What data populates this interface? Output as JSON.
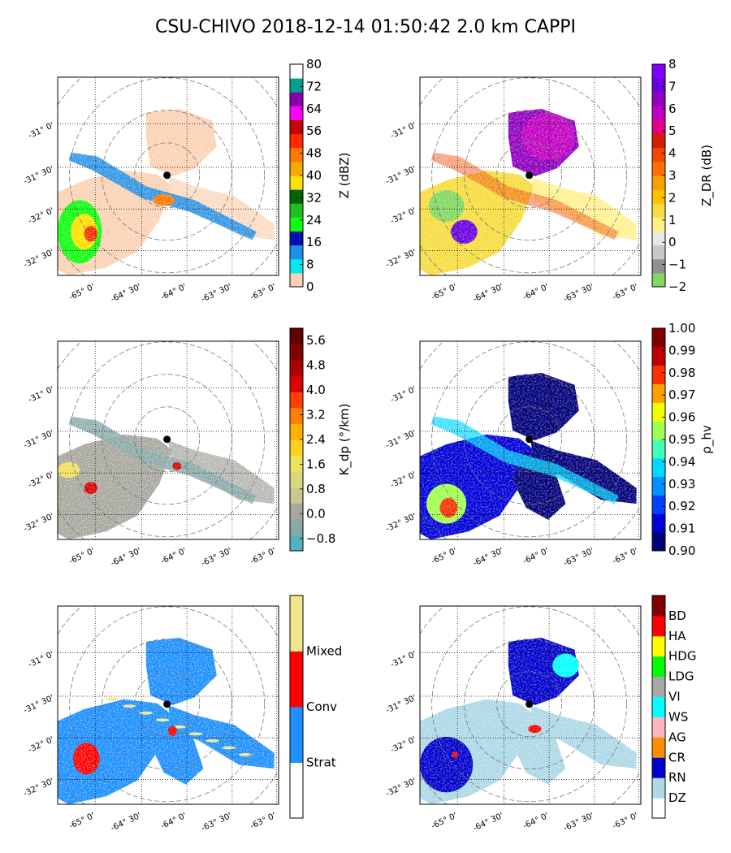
{
  "title": "CSU-CHIVO 2018-12-14 01:50:42  2.0 km CAPPI",
  "lon_ticks": [
    "-65° 0'",
    "-64° 30'",
    "-64° 0'",
    "-63° 30'",
    "-63° 0'"
  ],
  "lat_ticks": [
    "-31° 0'",
    "-31° 30'",
    "-32° 0'",
    "-32° 30'"
  ],
  "chart_data": [
    {
      "type": "heatmap",
      "field": "reflectivity",
      "colorbar_label": "Z (dBZ)",
      "colorbar_ticks": [
        "0",
        "8",
        "16",
        "24",
        "32",
        "40",
        "48",
        "56",
        "64",
        "72",
        "80"
      ],
      "colorbar_range": [
        0,
        80
      ],
      "colors": [
        "#fbd2b4",
        "#00e8f0",
        "#1f8fe8",
        "#0010b0",
        "#10ff10",
        "#20c020",
        "#006400",
        "#ffe000",
        "#f4a800",
        "#ff7a00",
        "#ff2a00",
        "#c80000",
        "#ff00ff",
        "#8a00a8",
        "#00a090",
        "#ffffff"
      ],
      "xlim": [
        "-65.3",
        "-62.95"
      ],
      "ylim": [
        "-32.8",
        "-30.55"
      ],
      "grid": true
    },
    {
      "type": "heatmap",
      "field": "differential_reflectivity",
      "colorbar_label": "Z_DR (dB)",
      "colorbar_ticks": [
        "−2",
        "−1",
        "0",
        "1",
        "2",
        "3",
        "4",
        "5",
        "6",
        "7",
        "8"
      ],
      "colorbar_range": [
        -2,
        8
      ],
      "colors": [
        "#80d860",
        "#909090",
        "#c8c8c8",
        "#e8e8e8",
        "#fff080",
        "#f6dc40",
        "#ffc000",
        "#f8a000",
        "#ff7000",
        "#f04800",
        "#d02000",
        "#e00080",
        "#c000c0",
        "#9000c0",
        "#6a00e0",
        "#8000ff"
      ],
      "xlim": [
        "-65.3",
        "-62.95"
      ],
      "ylim": [
        "-32.8",
        "-30.55"
      ],
      "grid": true
    },
    {
      "type": "heatmap",
      "field": "specific_differential_phase",
      "colorbar_label": "K_dp (°/km)",
      "colorbar_ticks": [
        "−0.8",
        "0.0",
        "0.8",
        "1.6",
        "2.4",
        "3.2",
        "4.0",
        "4.8",
        "5.6"
      ],
      "colorbar_range": [
        -1.2,
        6.0
      ],
      "colors": [
        "#56b0c0",
        "#8aa8a8",
        "#a8a8a0",
        "#c8c890",
        "#d8d880",
        "#f0e060",
        "#ffd020",
        "#ffb000",
        "#ff8000",
        "#ff4000",
        "#e00000",
        "#b00000",
        "#800000",
        "#600000"
      ],
      "xlim": [
        "-65.3",
        "-62.95"
      ],
      "ylim": [
        "-32.8",
        "-30.55"
      ],
      "grid": true
    },
    {
      "type": "heatmap",
      "field": "correlation_coefficient",
      "colorbar_label": "ρ_hv",
      "colorbar_ticks": [
        "0.90",
        "0.91",
        "0.92",
        "0.93",
        "0.94",
        "0.95",
        "0.96",
        "0.97",
        "0.98",
        "0.99",
        "1.00"
      ],
      "colorbar_range": [
        0.9,
        1.0
      ],
      "colors": [
        "#00007a",
        "#0000d8",
        "#0040ff",
        "#0090ff",
        "#00d8ff",
        "#40ffb8",
        "#a0ff50",
        "#f0ff00",
        "#ffa000",
        "#ff3000",
        "#c00000",
        "#800000"
      ],
      "xlim": [
        "-65.3",
        "-62.95"
      ],
      "ylim": [
        "-32.8",
        "-30.55"
      ],
      "grid": true
    },
    {
      "type": "heatmap",
      "field": "convective_stratiform",
      "colorbar_labels": [
        "Strat",
        "Conv",
        "Mixed"
      ],
      "colors": [
        "#ffffff",
        "#1e90ff",
        "#ff0000",
        "#f0e68c"
      ],
      "xlim": [
        "-65.3",
        "-62.95"
      ],
      "ylim": [
        "-32.8",
        "-30.55"
      ],
      "grid": true
    },
    {
      "type": "heatmap",
      "field": "hydrometeor_class",
      "colorbar_labels": [
        "DZ",
        "RN",
        "CR",
        "AG",
        "WS",
        "VI",
        "LDG",
        "HDG",
        "HA",
        "BD"
      ],
      "colors": [
        "#ffffff",
        "#add8e6",
        "#0000cd",
        "#ff8c00",
        "#ffb6c1",
        "#00ffff",
        "#a9a9a9",
        "#00ff00",
        "#ffff00",
        "#ff0000",
        "#800000"
      ],
      "xlim": [
        "-65.3",
        "-62.95"
      ],
      "ylim": [
        "-32.8",
        "-30.55"
      ],
      "grid": true
    }
  ]
}
